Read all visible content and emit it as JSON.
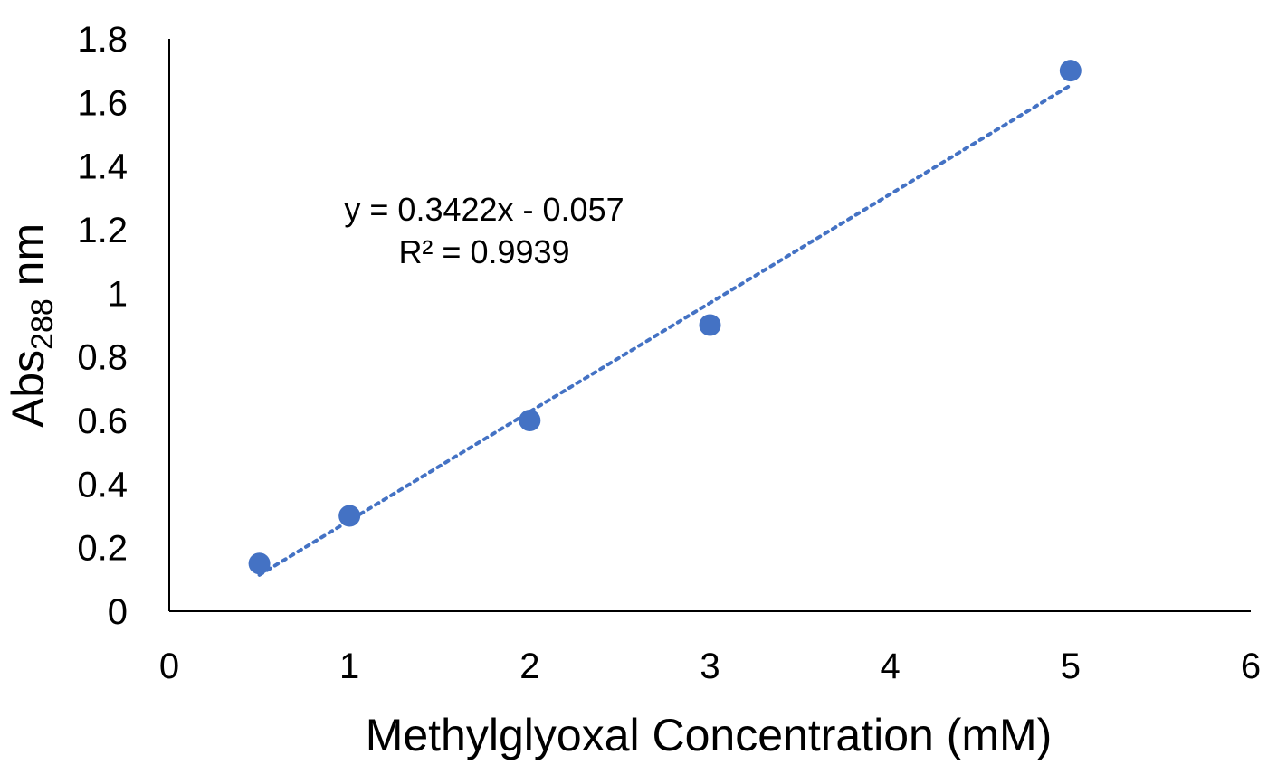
{
  "chart_data": {
    "type": "scatter",
    "title": "",
    "xlabel": "Methylglyoxal Concentration (mM)",
    "ylabel": {
      "main": "Abs",
      "subscript": "288",
      "suffix": " nm"
    },
    "xlim": [
      0,
      6
    ],
    "ylim": [
      0,
      1.8
    ],
    "x_ticks": [
      0,
      1,
      2,
      3,
      4,
      5,
      6
    ],
    "y_ticks": [
      0,
      0.2,
      0.4,
      0.6,
      0.8,
      1,
      1.2,
      1.4,
      1.6,
      1.8
    ],
    "x_tick_labels": [
      "0",
      "1",
      "2",
      "3",
      "4",
      "5",
      "6"
    ],
    "y_tick_labels": [
      "0",
      "0.2",
      "0.4",
      "0.6",
      "0.8",
      "1",
      "1.2",
      "1.4",
      "1.6",
      "1.8"
    ],
    "grid": false,
    "legend": "none",
    "series": [
      {
        "color": "#4472C4",
        "points": [
          {
            "x": 0.5,
            "y": 0.15
          },
          {
            "x": 1,
            "y": 0.3
          },
          {
            "x": 2,
            "y": 0.6
          },
          {
            "x": 3,
            "y": 0.9
          },
          {
            "x": 5,
            "y": 1.7
          }
        ]
      }
    ],
    "trendline": {
      "type": "linear",
      "style": "dotted",
      "color": "#4472C4",
      "slope": 0.3422,
      "intercept": -0.057,
      "x_range": [
        0.5,
        5
      ]
    },
    "annotations": {
      "equation": "y = 0.3422x - 0.057",
      "r_squared": "R² = 0.9939"
    }
  }
}
